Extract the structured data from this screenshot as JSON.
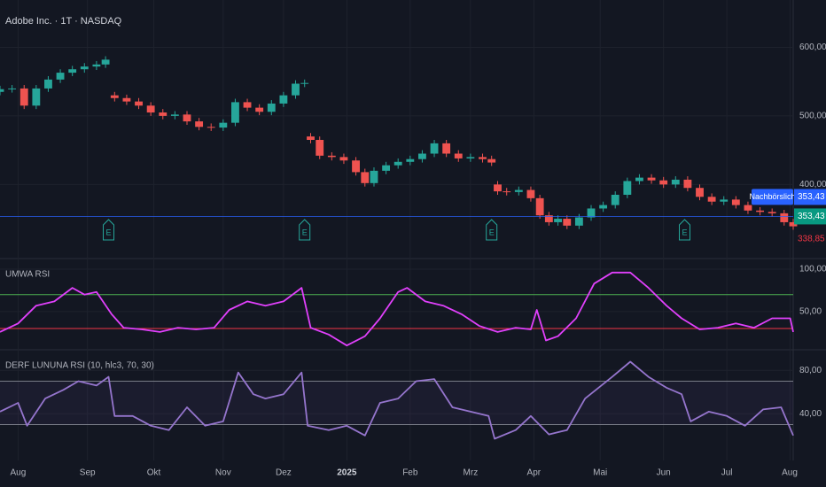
{
  "chart_data": [
    {
      "type": "candlestick",
      "title": "Adobe Inc. · 1T · NASDAQ",
      "x": [
        0,
        4,
        8,
        12,
        16,
        20,
        24,
        28,
        32,
        35,
        38,
        42,
        46,
        50,
        54,
        58,
        62,
        66,
        70,
        74,
        78,
        82,
        86,
        90,
        94,
        98,
        101,
        103,
        106,
        110,
        114,
        118,
        121,
        124,
        128,
        132,
        136,
        140,
        144,
        148,
        152,
        156,
        160,
        163,
        165,
        168,
        172,
        176,
        179,
        182,
        185,
        188,
        192,
        196,
        200,
        204,
        208,
        212,
        216,
        220,
        224,
        228,
        232,
        236,
        240,
        244,
        248,
        252,
        256,
        260,
        263
      ],
      "open": [
        535,
        539,
        540,
        515,
        540,
        553,
        563,
        568,
        572,
        575,
        530,
        526,
        521,
        515,
        505,
        500,
        502,
        492,
        484,
        483,
        490,
        520,
        512,
        506,
        518,
        530,
        547,
        470,
        465,
        442,
        440,
        435,
        418,
        402,
        420,
        428,
        433,
        437,
        445,
        460,
        445,
        438,
        440,
        437,
        400,
        390,
        389,
        392,
        380,
        355,
        345,
        350,
        340,
        352,
        365,
        370,
        385,
        405,
        410,
        406,
        400,
        407,
        395,
        382,
        375,
        378,
        370,
        362,
        360,
        358,
        345
      ],
      "high": [
        544,
        545,
        545,
        545,
        558,
        568,
        573,
        577,
        580,
        587,
        535,
        531,
        526,
        520,
        510,
        507,
        507,
        497,
        489,
        495,
        525,
        525,
        517,
        523,
        535,
        552,
        553,
        475,
        470,
        447,
        445,
        440,
        423,
        425,
        433,
        438,
        442,
        450,
        465,
        465,
        450,
        445,
        445,
        442,
        405,
        395,
        397,
        397,
        385,
        360,
        355,
        355,
        357,
        370,
        375,
        390,
        410,
        415,
        415,
        411,
        412,
        412,
        400,
        387,
        383,
        383,
        375,
        367,
        365,
        363,
        350
      ],
      "low": [
        530,
        534,
        510,
        510,
        535,
        548,
        558,
        563,
        567,
        570,
        521,
        516,
        510,
        500,
        495,
        495,
        487,
        479,
        478,
        478,
        485,
        507,
        501,
        501,
        513,
        525,
        542,
        460,
        437,
        435,
        430,
        413,
        397,
        397,
        415,
        423,
        428,
        432,
        440,
        440,
        433,
        433,
        432,
        427,
        385,
        384,
        384,
        375,
        350,
        340,
        340,
        335,
        335,
        347,
        360,
        365,
        380,
        400,
        401,
        395,
        395,
        390,
        377,
        370,
        370,
        365,
        357,
        355,
        353,
        340,
        334
      ],
      "close": [
        539,
        540,
        515,
        540,
        553,
        563,
        568,
        572,
        575,
        582,
        526,
        521,
        515,
        505,
        500,
        502,
        492,
        484,
        483,
        490,
        520,
        512,
        506,
        518,
        530,
        547,
        548,
        465,
        442,
        440,
        435,
        418,
        402,
        420,
        428,
        433,
        437,
        445,
        460,
        445,
        438,
        440,
        437,
        432,
        390,
        389,
        392,
        380,
        355,
        345,
        350,
        340,
        352,
        365,
        370,
        385,
        405,
        410,
        406,
        400,
        407,
        395,
        382,
        375,
        378,
        370,
        362,
        360,
        358,
        345,
        339
      ],
      "up_color": "#26a69a",
      "down_color": "#ef5350",
      "xlim": [
        0,
        263
      ],
      "ylim": [
        292,
        669
      ],
      "yticks": [
        {
          "value": 400,
          "label": "400,00"
        },
        {
          "value": 500,
          "label": "500,00"
        },
        {
          "value": 600,
          "label": "600,00"
        }
      ],
      "earnings": {
        "label": "E",
        "x": [
          36,
          101,
          163,
          227
        ],
        "color": "#26a69a"
      },
      "postmarket": {
        "name": "Nachbörslich",
        "value": 353.43,
        "label": "353,43",
        "color": "#2962ff"
      },
      "last_price": {
        "value": 353.43,
        "label": "353,43",
        "color": "#089981"
      },
      "close_price": {
        "value": 338.85,
        "label": "338,85",
        "color": "#f23645"
      }
    },
    {
      "type": "line",
      "title": "UMWA RSI",
      "x": [
        0,
        6,
        12,
        18,
        24,
        28,
        32,
        37,
        41,
        47,
        53,
        59,
        65,
        71,
        76,
        82,
        88,
        94,
        100,
        103,
        109,
        115,
        121,
        126,
        132,
        135,
        141,
        147,
        153,
        159,
        165,
        171,
        176,
        178,
        181,
        185,
        191,
        197,
        203,
        209,
        215,
        221,
        226,
        232,
        238,
        244,
        250,
        256,
        262,
        263
      ],
      "values": [
        26,
        36,
        57,
        62,
        78,
        70,
        73,
        47,
        31,
        29,
        26,
        31,
        29,
        31,
        52,
        62,
        57,
        62,
        78,
        31,
        23,
        10,
        21,
        42,
        73,
        78,
        62,
        57,
        47,
        33,
        26,
        31,
        29,
        52,
        16,
        21,
        42,
        83,
        96,
        96,
        78,
        57,
        42,
        29,
        31,
        36,
        31,
        42,
        42,
        26
      ],
      "color": "#e040fb",
      "xlim": [
        0,
        263
      ],
      "ylim": [
        5,
        112.5
      ],
      "yticks": [
        {
          "value": 50,
          "label": "50,00"
        },
        {
          "value": 100,
          "label": "100,00"
        }
      ],
      "levels": [
        {
          "value": 70,
          "color": "#4caf50"
        },
        {
          "value": 30,
          "color": "#f23645"
        }
      ]
    },
    {
      "type": "line",
      "title": "DERF LUNUNA RSI (10, hlc3, 70, 30)",
      "x": [
        0,
        6,
        9,
        15,
        21,
        26,
        32,
        36,
        38,
        44,
        50,
        56,
        62,
        68,
        74,
        79,
        84,
        88,
        94,
        100,
        102,
        109,
        115,
        121,
        126,
        132,
        138,
        144,
        150,
        156,
        162,
        164,
        171,
        176,
        182,
        188,
        194,
        203,
        209,
        215,
        221,
        226,
        229,
        235,
        241,
        247,
        253,
        259,
        263
      ],
      "values": [
        42,
        50,
        29,
        54,
        62,
        70,
        66,
        74,
        38,
        38,
        29,
        25,
        46,
        29,
        33,
        78,
        58,
        54,
        58,
        78,
        29,
        25,
        29,
        20,
        50,
        54,
        70,
        72,
        46,
        42,
        38,
        17,
        25,
        38,
        21,
        25,
        54,
        74,
        88,
        74,
        64,
        58,
        33,
        42,
        38,
        29,
        44,
        46,
        20
      ],
      "color": "#9575cd",
      "xlim": [
        0,
        263
      ],
      "ylim": [
        -3,
        99
      ],
      "yticks": [
        {
          "value": 40,
          "label": "40,00"
        },
        {
          "value": 80,
          "label": "80,00"
        }
      ],
      "levels": [
        {
          "value": 70,
          "color": "#787b86"
        },
        {
          "value": 30,
          "color": "#787b86"
        }
      ],
      "band_color": "rgba(126,87,194,0.08)",
      "xticks": [
        {
          "value": 6,
          "label": "Aug"
        },
        {
          "value": 29,
          "label": "Sep"
        },
        {
          "value": 51,
          "label": "Okt"
        },
        {
          "value": 74,
          "label": "Nov"
        },
        {
          "value": 94,
          "label": "Dez"
        },
        {
          "value": 115,
          "label": "2025"
        },
        {
          "value": 136,
          "label": "Feb"
        },
        {
          "value": 156,
          "label": "Mrz"
        },
        {
          "value": 177,
          "label": "Apr"
        },
        {
          "value": 199,
          "label": "Mai"
        },
        {
          "value": 220,
          "label": "Jun"
        },
        {
          "value": 241,
          "label": "Jul"
        },
        {
          "value": 262,
          "label": "Aug"
        }
      ]
    }
  ]
}
